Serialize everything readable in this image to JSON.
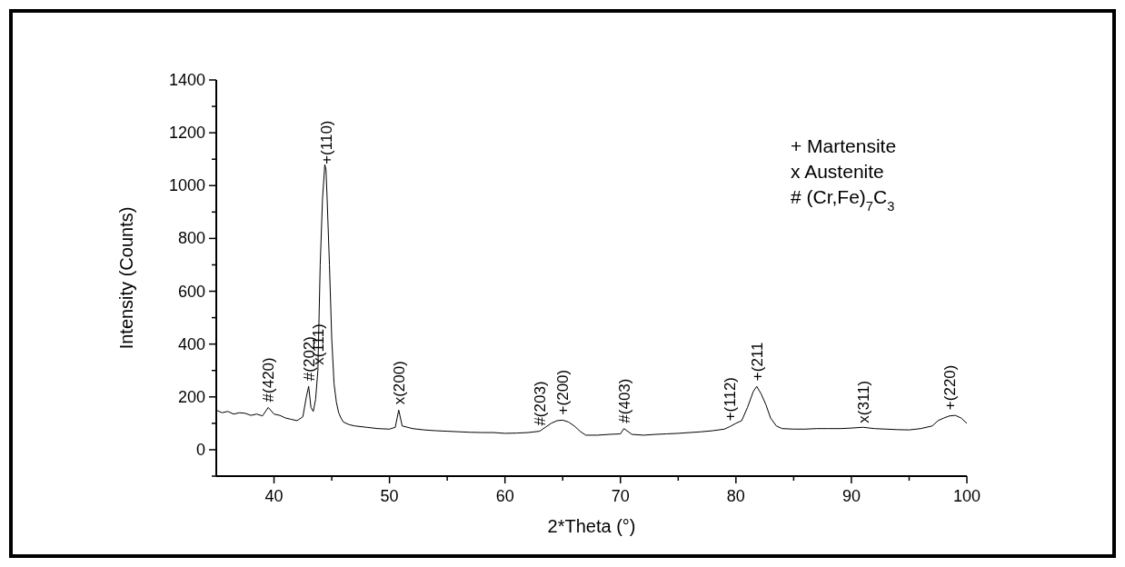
{
  "chart_data": {
    "type": "line",
    "xlabel": "2*Theta (°)",
    "ylabel": "Intensity (Counts)",
    "xlim": [
      35,
      100
    ],
    "ylim": [
      -100,
      1400
    ],
    "xticks": [
      40,
      {
        "value": 45,
        "label": null
      },
      50,
      {
        "value": 55,
        "label": null
      },
      60,
      {
        "value": 65,
        "label": null
      },
      70,
      {
        "value": 75,
        "label": null
      },
      80,
      {
        "value": 85,
        "label": null
      },
      90,
      {
        "value": 95,
        "label": null
      },
      100
    ],
    "yticks": [
      {
        "value": -100,
        "label": null
      },
      0,
      {
        "value": 100,
        "label": null
      },
      200,
      {
        "value": 300,
        "label": null
      },
      400,
      {
        "value": 500,
        "label": null
      },
      600,
      {
        "value": 700,
        "label": null
      },
      800,
      {
        "value": 900,
        "label": null
      },
      1000,
      {
        "value": 1100,
        "label": null
      },
      1200,
      {
        "value": 1300,
        "label": null
      },
      1400
    ],
    "grid": false,
    "marker": "none",
    "line_style": "solid",
    "series": [
      {
        "color": "#000000",
        "x": [
          35,
          35.5,
          36,
          36.5,
          37,
          37.5,
          38,
          38.5,
          39,
          39.5,
          40,
          40.5,
          41,
          41.5,
          42,
          42.5,
          42.8,
          43,
          43.2,
          43.4,
          43.6,
          43.8,
          44,
          44.2,
          44.4,
          44.5,
          44.6,
          44.8,
          45,
          45.2,
          45.4,
          45.6,
          45.8,
          46,
          46.5,
          47,
          48,
          49,
          50,
          50.5,
          50.8,
          51.1,
          52,
          53,
          54,
          55,
          56,
          57,
          58,
          59,
          60,
          61,
          62,
          63,
          63.5,
          64,
          64.5,
          65,
          65.5,
          66,
          66.5,
          67,
          68,
          69,
          70,
          70.3,
          71,
          72,
          73,
          74,
          75,
          76,
          77,
          78,
          79,
          79.5,
          80,
          80.5,
          81,
          81.5,
          81.8,
          82.2,
          82.6,
          83,
          83.5,
          84,
          85,
          86,
          87,
          88,
          89,
          90,
          91,
          92,
          93,
          94,
          95,
          96,
          97,
          97.5,
          98,
          98.5,
          99,
          99.5,
          100
        ],
        "values": [
          150,
          140,
          145,
          135,
          140,
          138,
          130,
          135,
          128,
          160,
          135,
          130,
          120,
          115,
          110,
          125,
          200,
          240,
          160,
          145,
          190,
          300,
          700,
          950,
          1080,
          1060,
          950,
          700,
          420,
          250,
          180,
          140,
          120,
          105,
          95,
          90,
          85,
          80,
          78,
          85,
          150,
          90,
          80,
          75,
          72,
          70,
          68,
          66,
          65,
          65,
          62,
          63,
          65,
          70,
          85,
          100,
          110,
          112,
          105,
          90,
          70,
          55,
          55,
          58,
          60,
          80,
          58,
          55,
          58,
          60,
          62,
          65,
          68,
          72,
          78,
          88,
          100,
          110,
          160,
          220,
          240,
          210,
          170,
          120,
          90,
          80,
          78,
          78,
          80,
          80,
          80,
          82,
          85,
          80,
          78,
          76,
          75,
          80,
          90,
          110,
          120,
          128,
          130,
          120,
          100
        ]
      }
    ],
    "annotations": [
      {
        "text": "#(420)",
        "x": 39.5,
        "y": 160
      },
      {
        "text": "#(202)",
        "x": 43,
        "y": 240
      },
      {
        "text": "x(111)",
        "x": 43.8,
        "y": 300
      },
      {
        "text": "+(110)",
        "x": 44.5,
        "y": 1060
      },
      {
        "text": "x(200)",
        "x": 50.8,
        "y": 150
      },
      {
        "text": "#(203)",
        "x": 63,
        "y": 70
      },
      {
        "text": "+(200)",
        "x": 65,
        "y": 112
      },
      {
        "text": "#(403)",
        "x": 70.3,
        "y": 80
      },
      {
        "text": "+(112)",
        "x": 79.5,
        "y": 88
      },
      {
        "text": "+(211",
        "x": 81.8,
        "y": 240
      },
      {
        "text": "x(311)",
        "x": 91,
        "y": 80
      },
      {
        "text": "+(220)",
        "x": 98.5,
        "y": 130
      },
      "+ Martensite",
      "x Austenite",
      "# (Cr,Fe)$_{7}$C$_{3}$"
    ]
  }
}
